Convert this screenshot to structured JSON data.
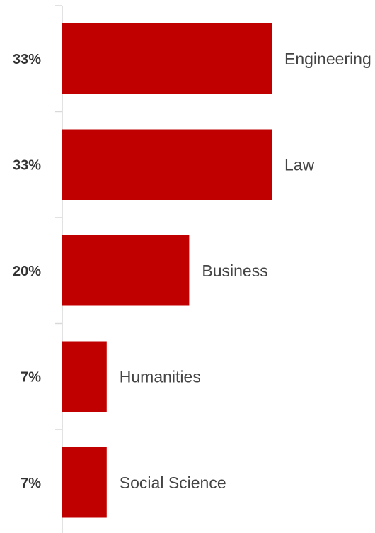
{
  "chart_data": {
    "type": "bar",
    "orientation": "horizontal",
    "categories": [
      "Engineering",
      "Law",
      "Business",
      "Humanities",
      "Social Science"
    ],
    "values": [
      33,
      33,
      20,
      7,
      7
    ],
    "value_labels": [
      "33%",
      "33%",
      "20%",
      "7%",
      "7%"
    ],
    "unit": "%",
    "xlim": [
      0,
      33
    ],
    "title": "",
    "xlabel": "",
    "ylabel": "",
    "grid": false,
    "legend": "none",
    "colors": {
      "bar": "#c00000",
      "axis": "#d9d9d9"
    }
  }
}
